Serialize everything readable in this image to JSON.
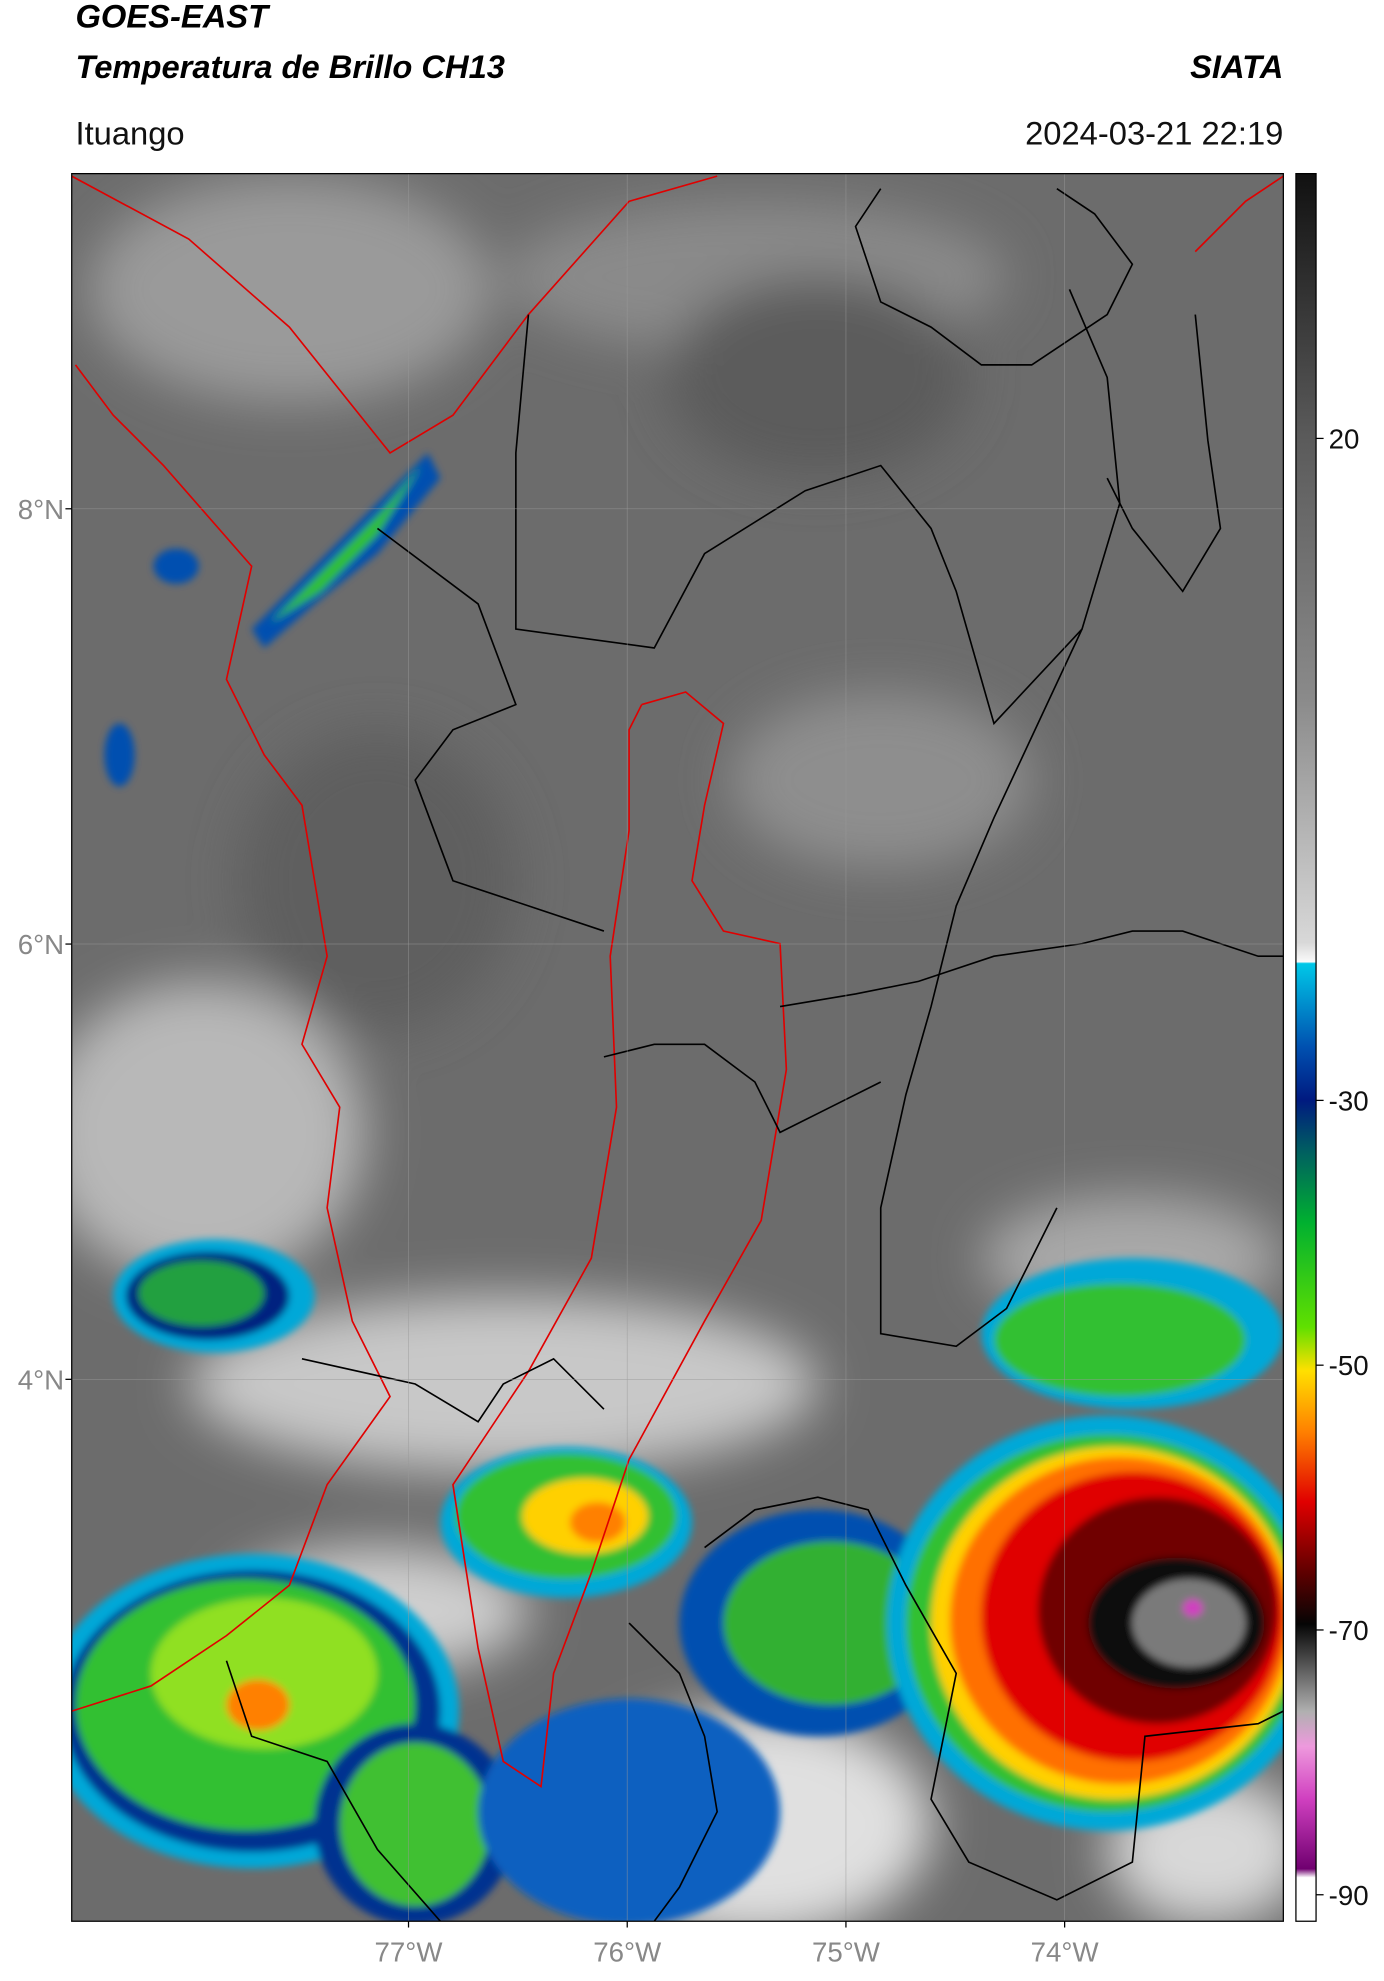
{
  "header": {
    "title": "GOES-EAST",
    "subtitle": "Temperatura de Brillo CH13",
    "source": "SIATA",
    "location": "Ituango",
    "datetime": "2024-03-21 22:19"
  },
  "map": {
    "xlim": [
      -78.54,
      -73.0
    ],
    "ylim": [
      1.51,
      9.54
    ],
    "xticks": [
      {
        "value": -77,
        "label": "77°W"
      },
      {
        "value": -76,
        "label": "76°W"
      },
      {
        "value": -75,
        "label": "75°W"
      },
      {
        "value": -74,
        "label": "74°W"
      }
    ],
    "yticks": [
      {
        "value": 4,
        "label": "4°N"
      },
      {
        "value": 6,
        "label": "6°N"
      },
      {
        "value": 8,
        "label": "8°N"
      }
    ],
    "grid": true
  },
  "colorbar": {
    "lim": [
      -92,
      40
    ],
    "ticks": [
      20,
      -30,
      -50,
      -70,
      -90
    ]
  }
}
